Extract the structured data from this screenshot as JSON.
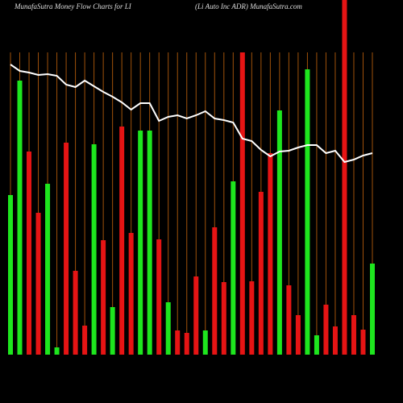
{
  "chart_data": {
    "type": "bar",
    "title": "MunafaSutra  Money Flow  Charts for LI",
    "subtitle": "(Li   Auto   Inc ADR) MunafaSutra.com",
    "categories": [
      null,
      null,
      null,
      null,
      null,
      null,
      null,
      null,
      null,
      null,
      null,
      null,
      null,
      null,
      null,
      null,
      null,
      null,
      null,
      null,
      null,
      null,
      null,
      null,
      null,
      null,
      null,
      null,
      null,
      null,
      null,
      null,
      null,
      null,
      null,
      null,
      null,
      null,
      null,
      null
    ],
    "values": [
      198,
      340,
      252,
      176,
      212,
      9,
      263,
      104,
      36,
      261,
      142,
      59,
      283,
      151,
      278,
      278,
      143,
      65,
      30,
      27,
      97,
      30,
      158,
      90,
      215,
      375,
      91,
      202,
      250,
      303,
      86,
      49,
      354,
      24,
      62,
      35,
      440,
      49,
      31,
      113
    ],
    "colors": [
      "#1ee61e",
      "#1ee61e",
      "#e61414",
      "#e61414",
      "#1ee61e",
      "#1ee61e",
      "#e61414",
      "#e61414",
      "#e61414",
      "#1ee61e",
      "#e61414",
      "#1ee61e",
      "#e61414",
      "#e61414",
      "#1ee61e",
      "#1ee61e",
      "#e61414",
      "#1ee61e",
      "#e61414",
      "#e61414",
      "#e61414",
      "#1ee61e",
      "#e61414",
      "#e61414",
      "#1ee61e",
      "#e61414",
      "#e61414",
      "#e61414",
      "#e61414",
      "#1ee61e",
      "#e61414",
      "#e61414",
      "#1ee61e",
      "#1ee61e",
      "#e61414",
      "#e61414",
      "#e61414",
      "#e61414",
      "#e61414",
      "#1ee61e"
    ],
    "line": {
      "color": "#ffffff",
      "values": [
        360,
        352,
        350,
        347,
        348,
        346,
        335,
        332,
        340,
        333,
        326,
        320,
        313,
        304,
        312,
        312,
        290,
        295,
        297,
        293,
        297,
        302,
        293,
        291,
        288,
        268,
        265,
        254,
        246,
        252,
        253,
        257,
        260,
        260,
        250,
        253,
        239,
        242,
        247,
        250
      ]
    },
    "ylim": [
      0,
      440
    ],
    "grid_color": "#a0520a"
  }
}
